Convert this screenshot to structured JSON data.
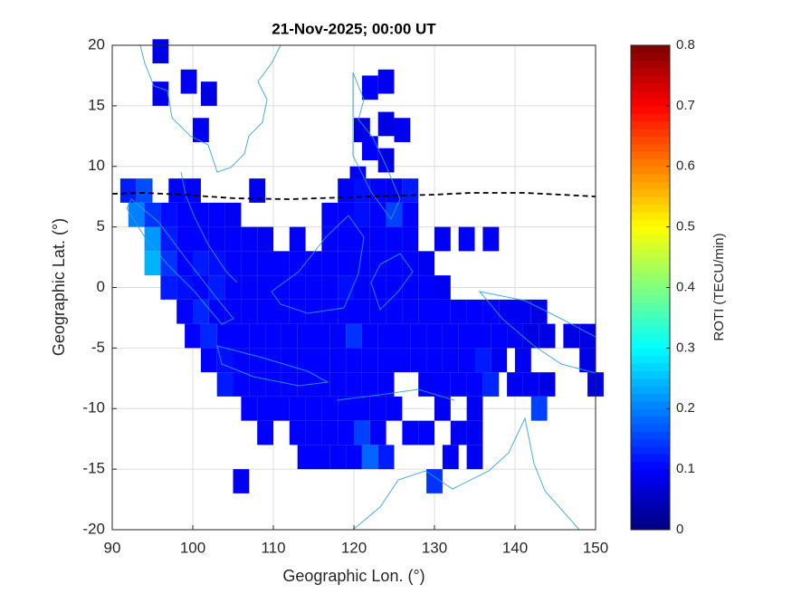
{
  "chart_data": {
    "type": "map",
    "title": "21-Nov-2025; 00:00 UT",
    "x_label": "Geographic Lon. (°)",
    "y_label": "Geographic Lat. (°)",
    "colorbar_label": "ROTI (TECU/min)",
    "xlim": [
      90,
      150
    ],
    "xticks": [
      90,
      100,
      110,
      120,
      130,
      140,
      150
    ],
    "ylim": [
      -20,
      20
    ],
    "yticks": [
      -20,
      -15,
      -10,
      -5,
      0,
      5,
      10,
      15,
      20
    ],
    "clim": [
      0,
      0.8
    ],
    "cticks": [
      0,
      0.1,
      0.2,
      0.3,
      0.4,
      0.5,
      0.6,
      0.7,
      0.8
    ],
    "colormap": "jet",
    "grid": true,
    "cells": [
      [
        96,
        19.5,
        0.08
      ],
      [
        96,
        16,
        0.08
      ],
      [
        99.5,
        17,
        0.09
      ],
      [
        102,
        16,
        0.08
      ],
      [
        101,
        13,
        0.09
      ],
      [
        122,
        16.5,
        0.1
      ],
      [
        124,
        17,
        0.09
      ],
      [
        121,
        13,
        0.08
      ],
      [
        124,
        13.5,
        0.08
      ],
      [
        126,
        13,
        0.09
      ],
      [
        122,
        11.5,
        0.1
      ],
      [
        120.5,
        9,
        0.09
      ],
      [
        124,
        10.5,
        0.08
      ],
      [
        92,
        8,
        0.12
      ],
      [
        94,
        8,
        0.16
      ],
      [
        98,
        8,
        0.1
      ],
      [
        100,
        8,
        0.1
      ],
      [
        108,
        8,
        0.09
      ],
      [
        119,
        8,
        0.1
      ],
      [
        121,
        8,
        0.11
      ],
      [
        123,
        8,
        0.1
      ],
      [
        125,
        8,
        0.09
      ],
      [
        127,
        8,
        0.12
      ],
      [
        93,
        6,
        0.2
      ],
      [
        95,
        6,
        0.14
      ],
      [
        97,
        6,
        0.11
      ],
      [
        99,
        6,
        0.1
      ],
      [
        101,
        6,
        0.1
      ],
      [
        103,
        6,
        0.1
      ],
      [
        105,
        6,
        0.09
      ],
      [
        117,
        6,
        0.1
      ],
      [
        119,
        6,
        0.1
      ],
      [
        121,
        6,
        0.11
      ],
      [
        123,
        6,
        0.1
      ],
      [
        125,
        6,
        0.15
      ],
      [
        127,
        6,
        0.1
      ],
      [
        95,
        4,
        0.22
      ],
      [
        97,
        4,
        0.12
      ],
      [
        99,
        4,
        0.1
      ],
      [
        101,
        4,
        0.1
      ],
      [
        103,
        4,
        0.1
      ],
      [
        105,
        4,
        0.1
      ],
      [
        107,
        4,
        0.1
      ],
      [
        109,
        4,
        0.09
      ],
      [
        113,
        4,
        0.1
      ],
      [
        117,
        4,
        0.1
      ],
      [
        119,
        4,
        0.1
      ],
      [
        121,
        4,
        0.1
      ],
      [
        123,
        4,
        0.1
      ],
      [
        125,
        4,
        0.1
      ],
      [
        127,
        4,
        0.1
      ],
      [
        131,
        4,
        0.09
      ],
      [
        134,
        4,
        0.1
      ],
      [
        137,
        4,
        0.09
      ],
      [
        95,
        2,
        0.24
      ],
      [
        97,
        2,
        0.14
      ],
      [
        99,
        2,
        0.1
      ],
      [
        101,
        2,
        0.12
      ],
      [
        103,
        2,
        0.11
      ],
      [
        105,
        2,
        0.1
      ],
      [
        107,
        2,
        0.1
      ],
      [
        109,
        2,
        0.1
      ],
      [
        111,
        2,
        0.1
      ],
      [
        113,
        2,
        0.1
      ],
      [
        115,
        2,
        0.1
      ],
      [
        117,
        2,
        0.1
      ],
      [
        119,
        2,
        0.1
      ],
      [
        121,
        2,
        0.1
      ],
      [
        123,
        2,
        0.1
      ],
      [
        125,
        2,
        0.1
      ],
      [
        127,
        2,
        0.1
      ],
      [
        129,
        2,
        0.09
      ],
      [
        97,
        0,
        0.12
      ],
      [
        99,
        0,
        0.11
      ],
      [
        101,
        0,
        0.1
      ],
      [
        103,
        0,
        0.12
      ],
      [
        105,
        0,
        0.1
      ],
      [
        107,
        0,
        0.1
      ],
      [
        109,
        0,
        0.1
      ],
      [
        111,
        0,
        0.1
      ],
      [
        113,
        0,
        0.1
      ],
      [
        115,
        0,
        0.1
      ],
      [
        117,
        0,
        0.1
      ],
      [
        119,
        0,
        0.11
      ],
      [
        121,
        0,
        0.1
      ],
      [
        123,
        0,
        0.1
      ],
      [
        125,
        0,
        0.1
      ],
      [
        127,
        0,
        0.1
      ],
      [
        129,
        0,
        0.1
      ],
      [
        131,
        0,
        0.09
      ],
      [
        99,
        -2,
        0.1
      ],
      [
        101,
        -2,
        0.13
      ],
      [
        103,
        -2,
        0.1
      ],
      [
        105,
        -2,
        0.1
      ],
      [
        107,
        -2,
        0.1
      ],
      [
        109,
        -2,
        0.1
      ],
      [
        111,
        -2,
        0.1
      ],
      [
        113,
        -2,
        0.1
      ],
      [
        115,
        -2,
        0.1
      ],
      [
        117,
        -2,
        0.1
      ],
      [
        119,
        -2,
        0.1
      ],
      [
        121,
        -2,
        0.1
      ],
      [
        123,
        -2,
        0.1
      ],
      [
        125,
        -2,
        0.1
      ],
      [
        127,
        -2,
        0.1
      ],
      [
        129,
        -2,
        0.1
      ],
      [
        131,
        -2,
        0.1
      ],
      [
        133,
        -2,
        0.1
      ],
      [
        135,
        -2,
        0.1
      ],
      [
        137,
        -2,
        0.1
      ],
      [
        139,
        -2,
        0.09
      ],
      [
        141,
        -2,
        0.09
      ],
      [
        143,
        -2,
        0.08
      ],
      [
        100,
        -4,
        0.1
      ],
      [
        102,
        -4,
        0.13
      ],
      [
        104,
        -4,
        0.1
      ],
      [
        106,
        -4,
        0.1
      ],
      [
        108,
        -4,
        0.1
      ],
      [
        110,
        -4,
        0.1
      ],
      [
        112,
        -4,
        0.1
      ],
      [
        114,
        -4,
        0.1
      ],
      [
        116,
        -4,
        0.1
      ],
      [
        118,
        -4,
        0.1
      ],
      [
        120,
        -4,
        0.14
      ],
      [
        122,
        -4,
        0.1
      ],
      [
        124,
        -4,
        0.1
      ],
      [
        126,
        -4,
        0.1
      ],
      [
        128,
        -4,
        0.1
      ],
      [
        130,
        -4,
        0.1
      ],
      [
        132,
        -4,
        0.1
      ],
      [
        134,
        -4,
        0.1
      ],
      [
        136,
        -4,
        0.1
      ],
      [
        138,
        -4,
        0.1
      ],
      [
        140,
        -4,
        0.09
      ],
      [
        142,
        -4,
        0.08
      ],
      [
        144,
        -4,
        0.08
      ],
      [
        147,
        -4,
        0.08
      ],
      [
        149,
        -4,
        0.08
      ],
      [
        102,
        -6,
        0.1
      ],
      [
        104,
        -6,
        0.11
      ],
      [
        106,
        -6,
        0.1
      ],
      [
        108,
        -6,
        0.1
      ],
      [
        110,
        -6,
        0.1
      ],
      [
        112,
        -6,
        0.1
      ],
      [
        114,
        -6,
        0.1
      ],
      [
        116,
        -6,
        0.1
      ],
      [
        118,
        -6,
        0.1
      ],
      [
        120,
        -6,
        0.1
      ],
      [
        122,
        -6,
        0.1
      ],
      [
        124,
        -6,
        0.1
      ],
      [
        126,
        -6,
        0.1
      ],
      [
        128,
        -6,
        0.1
      ],
      [
        130,
        -6,
        0.1
      ],
      [
        132,
        -6,
        0.1
      ],
      [
        134,
        -6,
        0.1
      ],
      [
        136,
        -6,
        0.12
      ],
      [
        138,
        -6,
        0.09
      ],
      [
        141,
        -6,
        0.09
      ],
      [
        149,
        -6,
        0.08
      ],
      [
        104,
        -8,
        0.12
      ],
      [
        106,
        -8,
        0.1
      ],
      [
        108,
        -8,
        0.1
      ],
      [
        110,
        -8,
        0.1
      ],
      [
        112,
        -8,
        0.1
      ],
      [
        114,
        -8,
        0.1
      ],
      [
        116,
        -8,
        0.1
      ],
      [
        118,
        -8,
        0.1
      ],
      [
        120,
        -8,
        0.1
      ],
      [
        122,
        -8,
        0.1
      ],
      [
        124,
        -8,
        0.1
      ],
      [
        129,
        -8,
        0.09
      ],
      [
        131,
        -8,
        0.1
      ],
      [
        133,
        -8,
        0.1
      ],
      [
        135,
        -8,
        0.1
      ],
      [
        137,
        -8,
        0.13
      ],
      [
        140,
        -8,
        0.09
      ],
      [
        142,
        -8,
        0.09
      ],
      [
        144,
        -8,
        0.08
      ],
      [
        150,
        -8,
        0.08
      ],
      [
        107,
        -10,
        0.1
      ],
      [
        109,
        -10,
        0.1
      ],
      [
        111,
        -10,
        0.1
      ],
      [
        113,
        -10,
        0.1
      ],
      [
        115,
        -10,
        0.1
      ],
      [
        117,
        -10,
        0.1
      ],
      [
        119,
        -10,
        0.1
      ],
      [
        121,
        -10,
        0.1
      ],
      [
        123,
        -10,
        0.1
      ],
      [
        125,
        -10,
        0.1
      ],
      [
        131,
        -10,
        0.09
      ],
      [
        135,
        -10,
        0.09
      ],
      [
        143,
        -10,
        0.15
      ],
      [
        109,
        -12,
        0.1
      ],
      [
        113,
        -12,
        0.1
      ],
      [
        115,
        -12,
        0.1
      ],
      [
        117,
        -12,
        0.1
      ],
      [
        119,
        -12,
        0.1
      ],
      [
        121,
        -12,
        0.15
      ],
      [
        123,
        -12,
        0.1
      ],
      [
        127,
        -12,
        0.1
      ],
      [
        129,
        -12,
        0.1
      ],
      [
        133,
        -12,
        0.09
      ],
      [
        135,
        -12,
        0.09
      ],
      [
        114,
        -14,
        0.1
      ],
      [
        116,
        -14,
        0.1
      ],
      [
        118,
        -14,
        0.1
      ],
      [
        120,
        -14,
        0.1
      ],
      [
        122,
        -14,
        0.18
      ],
      [
        124,
        -14,
        0.12
      ],
      [
        132,
        -14,
        0.09
      ],
      [
        135,
        -14,
        0.09
      ],
      [
        106,
        -16,
        0.09
      ],
      [
        130,
        -16,
        0.14
      ]
    ]
  }
}
